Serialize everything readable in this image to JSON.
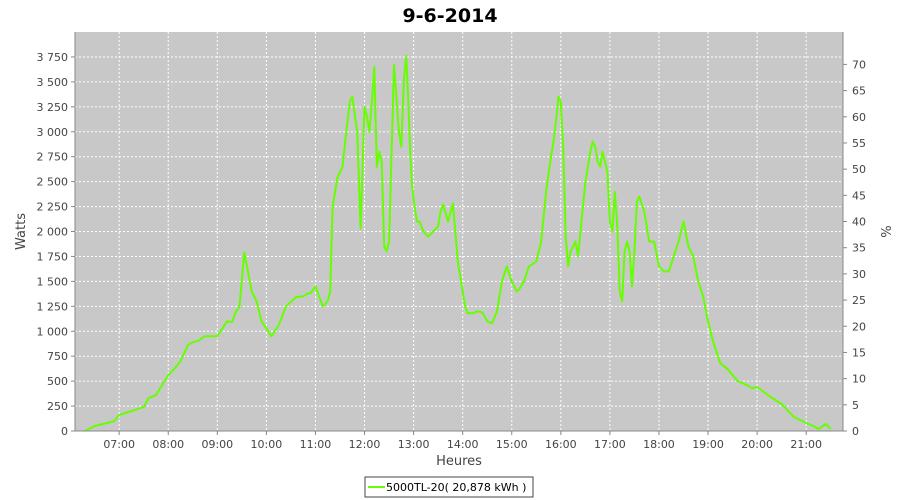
{
  "title": "9-6-2014",
  "chart_data": {
    "type": "line",
    "title": "9-6-2014",
    "xlabel": "Heures",
    "ylabel": "Watts",
    "y2label": "%",
    "ylim": [
      0,
      4000
    ],
    "y2lim": [
      0,
      76.19
    ],
    "x_unit": "hour-of-day",
    "xlim": [
      6.1,
      21.75
    ],
    "x_ticks": [
      "07:00",
      "08:00",
      "09:00",
      "10:00",
      "11:00",
      "12:00",
      "13:00",
      "14:00",
      "15:00",
      "16:00",
      "17:00",
      "18:00",
      "19:00",
      "20:00",
      "21:00"
    ],
    "y_ticks": [
      "0",
      "250",
      "500",
      "750",
      "1 000",
      "1 250",
      "1 500",
      "1 750",
      "2 000",
      "2 250",
      "2 500",
      "2 750",
      "3 000",
      "3 250",
      "3 500",
      "3 750"
    ],
    "y2_ticks": [
      "0",
      "5",
      "10",
      "15",
      "20",
      "25",
      "30",
      "35",
      "40",
      "45",
      "50",
      "55",
      "60",
      "65",
      "70"
    ],
    "grid": true,
    "background": "#c8c8c8",
    "series": [
      {
        "name": "5000TL-20( 20,878 kWh )",
        "color": "#66ff00",
        "x": [
          6.3,
          6.5,
          6.75,
          6.9,
          7.0,
          7.25,
          7.5,
          7.6,
          7.75,
          7.9,
          8.0,
          8.1,
          8.25,
          8.4,
          8.5,
          8.6,
          8.75,
          9.0,
          9.2,
          9.3,
          9.38,
          9.45,
          9.55,
          9.7,
          9.8,
          9.9,
          10.0,
          10.1,
          10.25,
          10.4,
          10.6,
          10.75,
          10.85,
          10.9,
          11.0,
          11.05,
          11.15,
          11.25,
          11.3,
          11.35,
          11.45,
          11.55,
          11.65,
          11.7,
          11.75,
          11.85,
          11.88,
          11.92,
          12.0,
          12.05,
          12.1,
          12.15,
          12.2,
          12.25,
          12.3,
          12.35,
          12.4,
          12.45,
          12.5,
          12.6,
          12.7,
          12.75,
          12.8,
          12.85,
          12.88,
          12.93,
          12.97,
          13.02,
          13.07,
          13.12,
          13.2,
          13.3,
          13.4,
          13.5,
          13.55,
          13.6,
          13.7,
          13.8,
          13.85,
          13.9,
          14.0,
          14.05,
          14.1,
          14.2,
          14.3,
          14.4,
          14.5,
          14.6,
          14.7,
          14.8,
          14.9,
          15.0,
          15.1,
          15.15,
          15.25,
          15.35,
          15.5,
          15.6,
          15.7,
          15.8,
          15.85,
          15.9,
          15.95,
          16.0,
          16.05,
          16.1,
          16.15,
          16.2,
          16.3,
          16.35,
          16.4,
          16.5,
          16.6,
          16.65,
          16.7,
          16.75,
          16.8,
          16.85,
          16.9,
          16.95,
          17.0,
          17.05,
          17.1,
          17.15,
          17.2,
          17.25,
          17.3,
          17.35,
          17.4,
          17.45,
          17.5,
          17.55,
          17.6,
          17.7,
          17.8,
          17.9,
          18.0,
          18.1,
          18.2,
          18.3,
          18.4,
          18.5,
          18.6,
          18.7,
          18.8,
          18.9,
          19.0,
          19.1,
          19.25,
          19.4,
          19.5,
          19.6,
          19.75,
          19.9,
          20.0,
          20.25,
          20.5,
          20.75,
          21.0,
          21.15,
          21.25,
          21.4,
          21.5
        ],
        "y": [
          0,
          50,
          80,
          100,
          160,
          200,
          240,
          330,
          360,
          480,
          560,
          610,
          700,
          860,
          890,
          900,
          950,
          950,
          1100,
          1090,
          1200,
          1240,
          1790,
          1400,
          1300,
          1100,
          1030,
          950,
          1060,
          1250,
          1340,
          1350,
          1380,
          1380,
          1450,
          1380,
          1250,
          1300,
          1400,
          2250,
          2540,
          2650,
          3100,
          3300,
          3350,
          3000,
          2600,
          2030,
          3250,
          3150,
          3000,
          3300,
          3650,
          2650,
          2800,
          2700,
          1850,
          1800,
          1900,
          3670,
          3000,
          2850,
          3500,
          3760,
          3450,
          2800,
          2450,
          2250,
          2100,
          2100,
          2000,
          1950,
          2000,
          2050,
          2200,
          2270,
          2100,
          2280,
          2000,
          1700,
          1400,
          1250,
          1180,
          1180,
          1200,
          1190,
          1100,
          1080,
          1200,
          1500,
          1650,
          1500,
          1400,
          1420,
          1500,
          1650,
          1700,
          1900,
          2400,
          2750,
          2900,
          3100,
          3350,
          3300,
          2800,
          1950,
          1650,
          1800,
          1900,
          1750,
          2000,
          2500,
          2800,
          2900,
          2850,
          2700,
          2650,
          2800,
          2700,
          2600,
          2100,
          2000,
          2400,
          2050,
          1400,
          1300,
          1800,
          1900,
          1800,
          1450,
          1800,
          2300,
          2350,
          2200,
          1900,
          1900,
          1650,
          1600,
          1600,
          1750,
          1900,
          2100,
          1850,
          1750,
          1500,
          1350,
          1100,
          900,
          680,
          620,
          560,
          500,
          470,
          430,
          440,
          350,
          270,
          140,
          80,
          50,
          20,
          70,
          20
        ]
      }
    ],
    "legend": {
      "placement": "bottom-center",
      "entries": [
        "5000TL-20( 20,878 kWh )"
      ]
    }
  }
}
